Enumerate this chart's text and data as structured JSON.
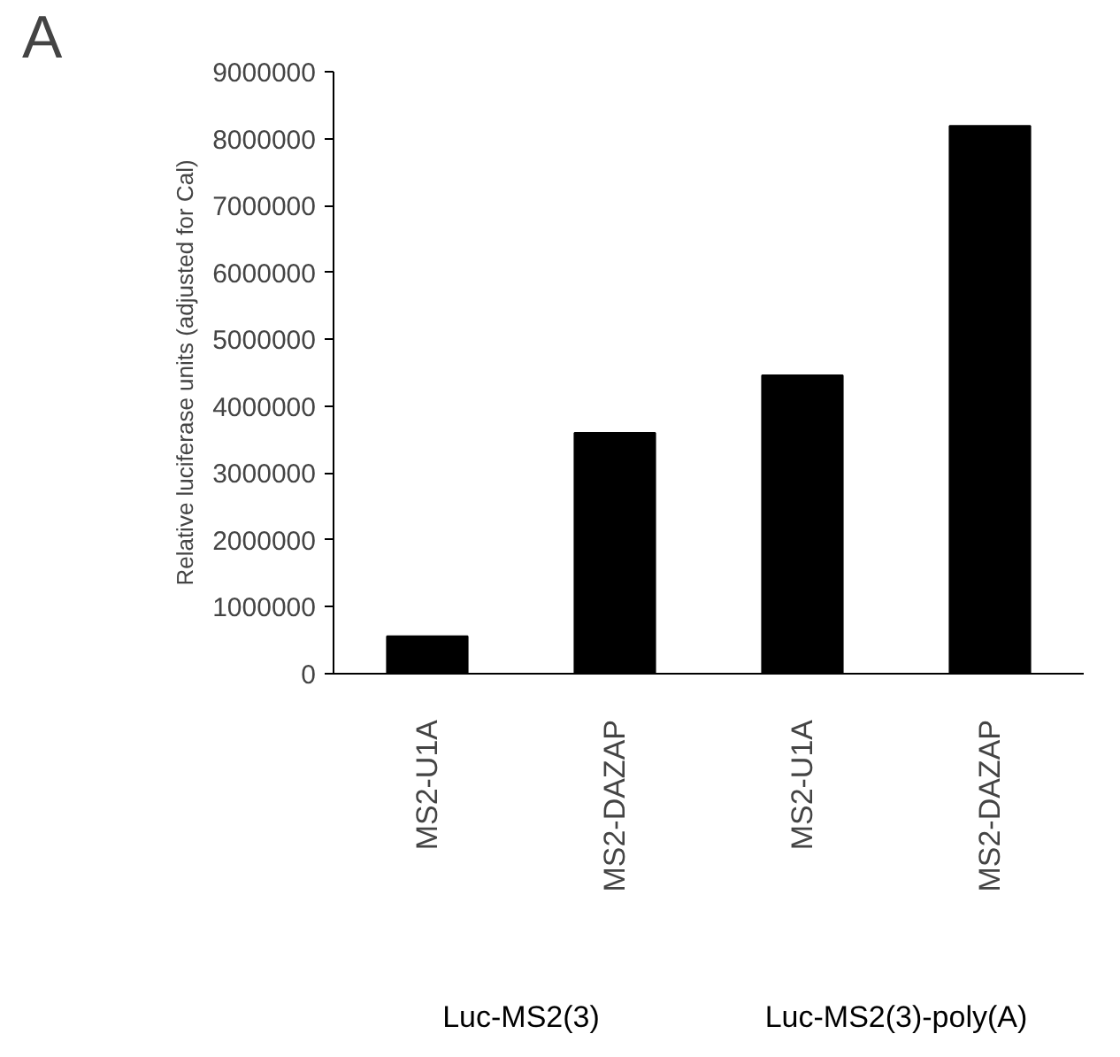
{
  "chart_data": {
    "type": "bar",
    "ylabel": "Relative luciferase units (adjusted for Cal)",
    "categories": [
      "MS2-U1A",
      "MS2-DAZAP",
      "MS2-U1A",
      "MS2-DAZAP"
    ],
    "values": [
      560000,
      3600000,
      4460000,
      8190000
    ],
    "color": "#000000",
    "ylim": [
      0,
      9000000
    ],
    "yticks": [
      0,
      1000000,
      2000000,
      3000000,
      4000000,
      5000000,
      6000000,
      7000000,
      8000000,
      9000000
    ],
    "grid": false,
    "annotations": [
      "A",
      "Luc-MS2(3)",
      "Luc-MS2(3)-poly(A)"
    ]
  }
}
